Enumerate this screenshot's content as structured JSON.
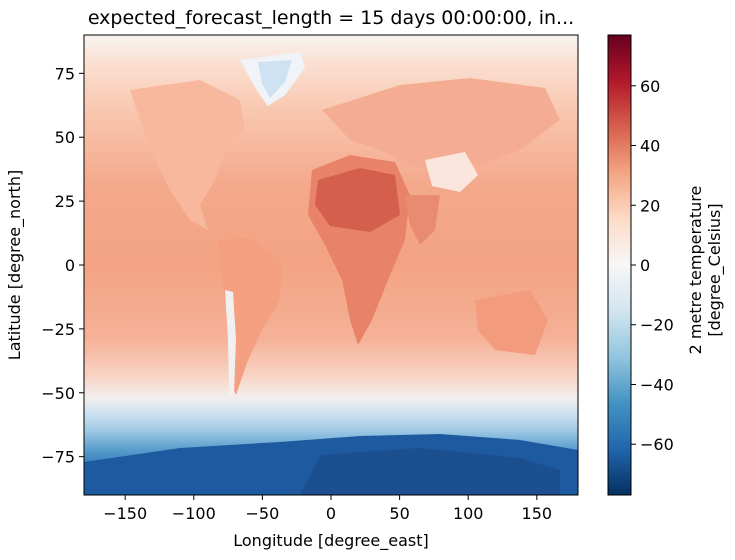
{
  "chart_data": {
    "type": "heatmap",
    "title": "expected_forecast_length = 15 days 00:00:00, in...",
    "xlabel": "Longitude [degree_east]",
    "ylabel": "Latitude [degree_north]",
    "xlim": [
      -180,
      180
    ],
    "ylim": [
      -90,
      90
    ],
    "x_ticks": [
      -150,
      -100,
      -50,
      0,
      50,
      100,
      150
    ],
    "x_tick_labels": [
      "−150",
      "−100",
      "−50",
      "0",
      "50",
      "100",
      "150"
    ],
    "y_ticks": [
      75,
      50,
      25,
      0,
      -25,
      -50,
      -75
    ],
    "y_tick_labels": [
      "75",
      "50",
      "25",
      "0",
      "−25",
      "−50",
      "−75"
    ],
    "colorbar": {
      "label_line1": "2 metre temperature",
      "label_line2": "[degree_Celsius]",
      "colormap": "RdBu_r",
      "vmin": -77,
      "vmax": 77,
      "ticks": [
        60,
        40,
        20,
        0,
        -20,
        -40,
        -60
      ],
      "tick_labels": [
        "60",
        "40",
        "20",
        "0",
        "−20",
        "−40",
        "−60"
      ],
      "colors": [
        "#053061",
        "#2166ac",
        "#4393c3",
        "#92c5de",
        "#d1e5f0",
        "#f7f7f7",
        "#fddbc7",
        "#f4a582",
        "#d6604d",
        "#b2182b",
        "#67001f"
      ]
    },
    "grid": false
  }
}
